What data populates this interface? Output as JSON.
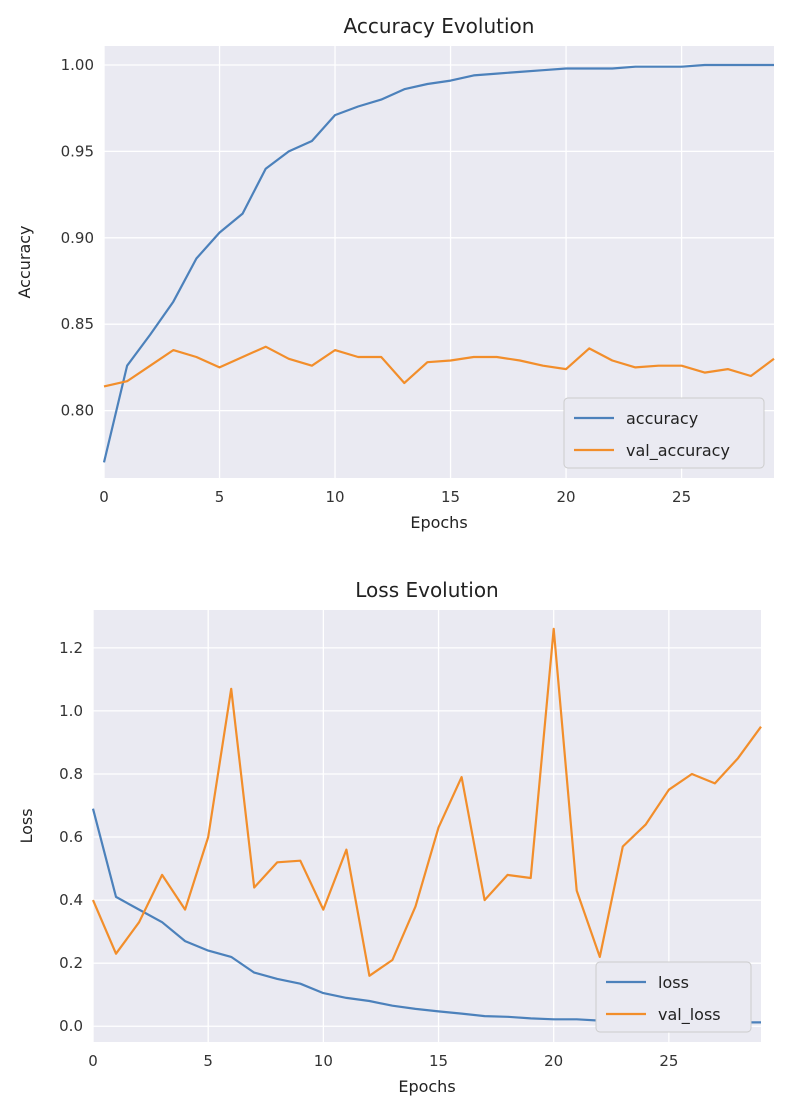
{
  "chart_data": [
    {
      "type": "line",
      "title": "Accuracy Evolution",
      "xlabel": "Epochs",
      "ylabel": "Accuracy",
      "xlim": [
        0,
        29
      ],
      "ylim": [
        0.761,
        1.011
      ],
      "xticks": [
        0,
        5,
        10,
        15,
        20,
        25
      ],
      "yticks": [
        0.8,
        0.85,
        0.9,
        0.95,
        1.0
      ],
      "xtick_labels": [
        "0",
        "5",
        "10",
        "15",
        "20",
        "25"
      ],
      "ytick_labels": [
        "0.80",
        "0.85",
        "0.90",
        "0.95",
        "1.00"
      ],
      "grid": true,
      "legend": "lower right",
      "x": [
        0,
        1,
        2,
        3,
        4,
        5,
        6,
        7,
        8,
        9,
        10,
        11,
        12,
        13,
        14,
        15,
        16,
        17,
        18,
        19,
        20,
        21,
        22,
        23,
        24,
        25,
        26,
        27,
        28,
        29
      ],
      "series": [
        {
          "name": "accuracy",
          "color": "#4c81bb",
          "values": [
            0.77,
            0.826,
            0.844,
            0.863,
            0.888,
            0.903,
            0.914,
            0.94,
            0.95,
            0.956,
            0.971,
            0.976,
            0.98,
            0.986,
            0.989,
            0.991,
            0.994,
            0.995,
            0.996,
            0.997,
            0.998,
            0.998,
            0.998,
            0.999,
            0.999,
            0.999,
            1.0,
            1.0,
            1.0,
            1.0
          ]
        },
        {
          "name": "val_accuracy",
          "color": "#f28e2b",
          "values": [
            0.814,
            0.817,
            0.826,
            0.835,
            0.831,
            0.825,
            0.831,
            0.837,
            0.83,
            0.826,
            0.835,
            0.831,
            0.831,
            0.816,
            0.828,
            0.829,
            0.831,
            0.831,
            0.829,
            0.826,
            0.824,
            0.836,
            0.829,
            0.825,
            0.826,
            0.826,
            0.822,
            0.824,
            0.82,
            0.83
          ]
        }
      ]
    },
    {
      "type": "line",
      "title": "Loss Evolution",
      "xlabel": "Epochs",
      "ylabel": "Loss",
      "xlim": [
        0,
        29
      ],
      "ylim": [
        -0.05,
        1.32
      ],
      "xticks": [
        0,
        5,
        10,
        15,
        20,
        25
      ],
      "yticks": [
        0.0,
        0.2,
        0.4,
        0.6,
        0.8,
        1.0,
        1.2
      ],
      "xtick_labels": [
        "0",
        "5",
        "10",
        "15",
        "20",
        "25"
      ],
      "ytick_labels": [
        "0.0",
        "0.2",
        "0.4",
        "0.6",
        "0.8",
        "1.0",
        "1.2"
      ],
      "grid": true,
      "legend": "lower right",
      "x": [
        0,
        1,
        2,
        3,
        4,
        5,
        6,
        7,
        8,
        9,
        10,
        11,
        12,
        13,
        14,
        15,
        16,
        17,
        18,
        19,
        20,
        21,
        22,
        23,
        24,
        25,
        26,
        27,
        28,
        29
      ],
      "series": [
        {
          "name": "loss",
          "color": "#4c81bb",
          "values": [
            0.69,
            0.41,
            0.37,
            0.33,
            0.27,
            0.24,
            0.22,
            0.17,
            0.15,
            0.135,
            0.105,
            0.09,
            0.08,
            0.065,
            0.055,
            0.047,
            0.04,
            0.032,
            0.03,
            0.025,
            0.022,
            0.022,
            0.018,
            0.015,
            0.015,
            0.014,
            0.015,
            0.013,
            0.012,
            0.012
          ]
        },
        {
          "name": "val_loss",
          "color": "#f28e2b",
          "values": [
            0.4,
            0.23,
            0.33,
            0.48,
            0.37,
            0.6,
            1.07,
            0.44,
            0.52,
            0.525,
            0.37,
            0.56,
            0.16,
            0.21,
            0.38,
            0.63,
            0.79,
            0.4,
            0.48,
            0.47,
            1.26,
            0.43,
            0.22,
            0.57,
            0.64,
            0.75,
            0.8,
            0.77,
            0.85,
            0.95
          ]
        }
      ]
    }
  ]
}
